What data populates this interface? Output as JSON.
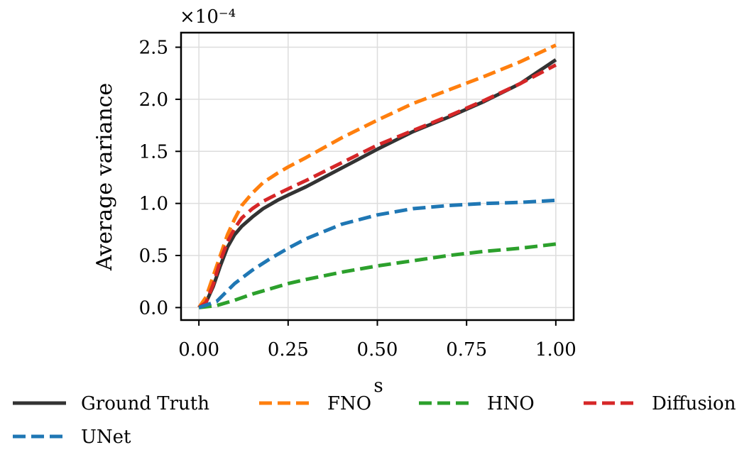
{
  "chart_data": {
    "type": "line",
    "xlabel": "s",
    "ylabel": "Average variance",
    "y_scale_label": "×10⁻⁴",
    "xlim": [
      -0.05,
      1.05
    ],
    "ylim": [
      -0.12,
      2.64
    ],
    "xticks": [
      0.0,
      0.25,
      0.5,
      0.75,
      1.0
    ],
    "xtick_labels": [
      "0.00",
      "0.25",
      "0.50",
      "0.75",
      "1.00"
    ],
    "yticks": [
      0.0,
      0.5,
      1.0,
      1.5,
      2.0,
      2.5
    ],
    "ytick_labels": [
      "0.0",
      "0.5",
      "1.0",
      "1.5",
      "2.0",
      "2.5"
    ],
    "grid": true,
    "legend_placement": "below",
    "series": [
      {
        "name": "Ground Truth",
        "color": "#333333",
        "style": "solid",
        "x": [
          0.0,
          0.02,
          0.04,
          0.06,
          0.08,
          0.1,
          0.12,
          0.15,
          0.18,
          0.22,
          0.25,
          0.3,
          0.4,
          0.5,
          0.6,
          0.7,
          0.8,
          0.9,
          1.0
        ],
        "y": [
          0.0,
          0.05,
          0.2,
          0.4,
          0.58,
          0.7,
          0.78,
          0.87,
          0.95,
          1.03,
          1.08,
          1.16,
          1.34,
          1.52,
          1.69,
          1.83,
          1.98,
          2.15,
          2.38
        ]
      },
      {
        "name": "FNO",
        "color": "#ff7f0e",
        "style": "dashed",
        "x": [
          0.0,
          0.02,
          0.04,
          0.06,
          0.08,
          0.1,
          0.12,
          0.15,
          0.18,
          0.22,
          0.25,
          0.3,
          0.4,
          0.5,
          0.6,
          0.7,
          0.8,
          0.9,
          1.0
        ],
        "y": [
          0.0,
          0.1,
          0.3,
          0.5,
          0.7,
          0.85,
          0.98,
          1.1,
          1.2,
          1.29,
          1.35,
          1.44,
          1.63,
          1.8,
          1.96,
          2.09,
          2.22,
          2.36,
          2.52
        ]
      },
      {
        "name": "HNO",
        "color": "#2ca02c",
        "style": "dashed",
        "x": [
          0.0,
          0.05,
          0.1,
          0.15,
          0.2,
          0.25,
          0.3,
          0.4,
          0.5,
          0.6,
          0.7,
          0.8,
          0.9,
          1.0
        ],
        "y": [
          0.0,
          0.02,
          0.07,
          0.13,
          0.18,
          0.23,
          0.27,
          0.34,
          0.4,
          0.45,
          0.5,
          0.54,
          0.57,
          0.61
        ]
      },
      {
        "name": "Diffusion",
        "color": "#d62728",
        "style": "dashed",
        "x": [
          0.0,
          0.02,
          0.04,
          0.06,
          0.08,
          0.1,
          0.12,
          0.15,
          0.18,
          0.22,
          0.25,
          0.3,
          0.4,
          0.5,
          0.6,
          0.7,
          0.8,
          0.9,
          1.0
        ],
        "y": [
          0.0,
          0.05,
          0.22,
          0.45,
          0.63,
          0.76,
          0.86,
          0.95,
          1.02,
          1.09,
          1.14,
          1.22,
          1.39,
          1.56,
          1.7,
          1.84,
          1.99,
          2.15,
          2.33
        ]
      },
      {
        "name": "UNet",
        "color": "#1f77b4",
        "style": "dashed",
        "x": [
          0.0,
          0.05,
          0.1,
          0.15,
          0.2,
          0.25,
          0.3,
          0.4,
          0.5,
          0.6,
          0.7,
          0.8,
          0.9,
          1.0
        ],
        "y": [
          0.0,
          0.06,
          0.23,
          0.36,
          0.47,
          0.57,
          0.66,
          0.8,
          0.89,
          0.95,
          0.98,
          1.0,
          1.01,
          1.03
        ]
      }
    ]
  }
}
